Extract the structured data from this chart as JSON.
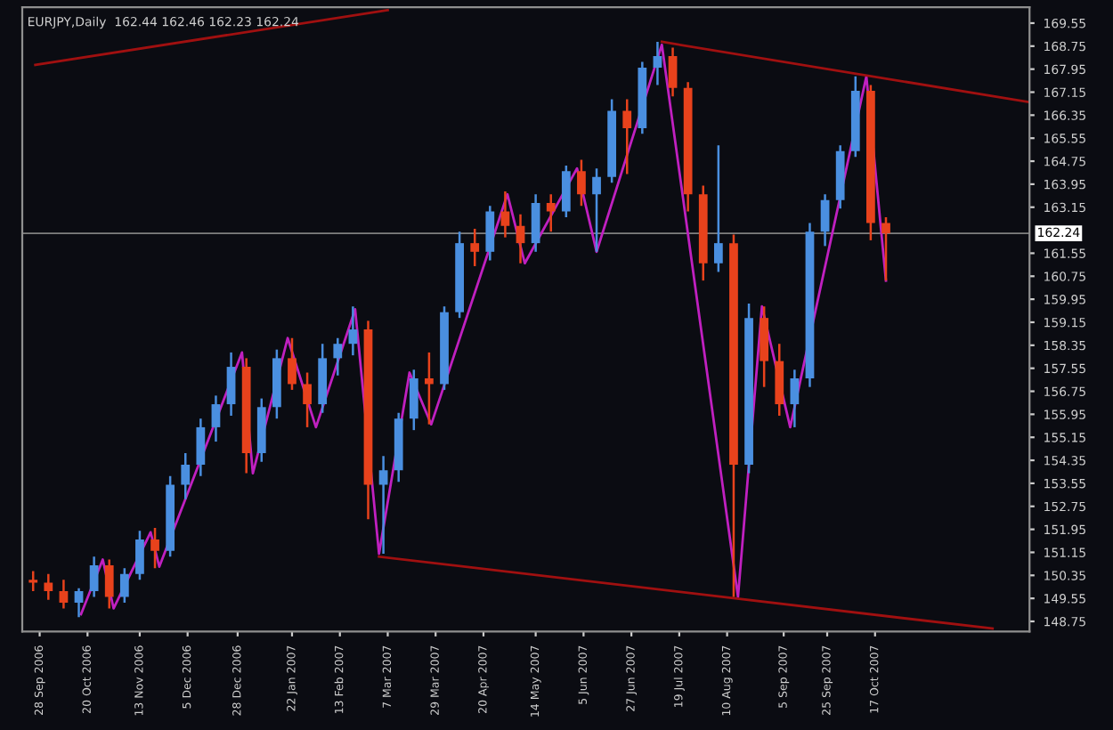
{
  "chart_data": {
    "type": "candlestick",
    "title": "EURJPY,Daily  162.44 162.46 162.23 162.24",
    "x": [
      "2006-09-25",
      "2006-10-02",
      "2006-10-09",
      "2006-10-16",
      "2006-10-23",
      "2006-10-30",
      "2006-11-06",
      "2006-11-13",
      "2006-11-20",
      "2006-11-27",
      "2006-12-04",
      "2006-12-11",
      "2006-12-18",
      "2006-12-25",
      "2007-01-01",
      "2007-01-08",
      "2007-01-15",
      "2007-01-22",
      "2007-01-29",
      "2007-02-05",
      "2007-02-12",
      "2007-02-19",
      "2007-02-26",
      "2007-03-05",
      "2007-03-12",
      "2007-03-19",
      "2007-03-26",
      "2007-04-02",
      "2007-04-09",
      "2007-04-16",
      "2007-04-23",
      "2007-04-30",
      "2007-05-07",
      "2007-05-14",
      "2007-05-21",
      "2007-05-28",
      "2007-06-04",
      "2007-06-11",
      "2007-06-18",
      "2007-06-25",
      "2007-07-02",
      "2007-07-09",
      "2007-07-16",
      "2007-07-23",
      "2007-07-30",
      "2007-08-06",
      "2007-08-13",
      "2007-08-20",
      "2007-08-27",
      "2007-09-03",
      "2007-09-10",
      "2007-09-17",
      "2007-09-24",
      "2007-10-01",
      "2007-10-08",
      "2007-10-15",
      "2007-10-22"
    ],
    "ohlc": [
      [
        150.2,
        150.5,
        149.8,
        150.1
      ],
      [
        150.1,
        150.4,
        149.5,
        149.8
      ],
      [
        149.8,
        150.2,
        149.2,
        149.4
      ],
      [
        149.4,
        149.9,
        148.9,
        149.8
      ],
      [
        149.8,
        151.0,
        149.6,
        150.7
      ],
      [
        150.7,
        150.9,
        149.2,
        149.6
      ],
      [
        149.6,
        150.6,
        149.4,
        150.4
      ],
      [
        150.4,
        151.9,
        150.2,
        151.6
      ],
      [
        151.6,
        152.0,
        150.6,
        151.2
      ],
      [
        151.2,
        153.8,
        151.0,
        153.5
      ],
      [
        153.5,
        154.6,
        153.0,
        154.2
      ],
      [
        154.2,
        155.8,
        153.8,
        155.5
      ],
      [
        155.5,
        156.6,
        155.0,
        156.3
      ],
      [
        156.3,
        158.1,
        155.9,
        157.6
      ],
      [
        157.6,
        157.9,
        153.9,
        154.6
      ],
      [
        154.6,
        156.5,
        154.3,
        156.2
      ],
      [
        156.2,
        158.2,
        155.8,
        157.9
      ],
      [
        157.9,
        158.6,
        156.8,
        157.0
      ],
      [
        157.0,
        157.4,
        155.5,
        156.3
      ],
      [
        156.3,
        158.4,
        156.0,
        157.9
      ],
      [
        157.9,
        158.6,
        157.3,
        158.4
      ],
      [
        158.4,
        159.7,
        158.0,
        158.9
      ],
      [
        158.9,
        159.2,
        152.3,
        153.5
      ],
      [
        153.5,
        154.5,
        151.1,
        154.0
      ],
      [
        154.0,
        156.0,
        153.6,
        155.8
      ],
      [
        155.8,
        157.5,
        155.4,
        157.2
      ],
      [
        157.2,
        158.1,
        155.6,
        157.0
      ],
      [
        157.0,
        159.7,
        156.8,
        159.5
      ],
      [
        159.5,
        162.3,
        159.3,
        161.9
      ],
      [
        161.9,
        162.4,
        161.1,
        161.6
      ],
      [
        161.6,
        163.2,
        161.3,
        163.0
      ],
      [
        163.0,
        163.7,
        162.1,
        162.5
      ],
      [
        162.5,
        162.9,
        161.2,
        161.9
      ],
      [
        161.9,
        163.6,
        161.6,
        163.3
      ],
      [
        163.3,
        163.6,
        162.3,
        163.0
      ],
      [
        163.0,
        164.6,
        162.8,
        164.4
      ],
      [
        164.4,
        164.8,
        163.2,
        163.6
      ],
      [
        163.6,
        164.5,
        161.6,
        164.2
      ],
      [
        164.2,
        166.9,
        164.0,
        166.5
      ],
      [
        166.5,
        166.9,
        164.3,
        165.9
      ],
      [
        165.9,
        168.2,
        165.7,
        168.0
      ],
      [
        168.0,
        168.9,
        167.4,
        168.4
      ],
      [
        168.4,
        168.7,
        167.0,
        167.3
      ],
      [
        167.3,
        167.5,
        163.0,
        163.6
      ],
      [
        163.6,
        163.9,
        160.6,
        161.2
      ],
      [
        161.2,
        165.3,
        160.9,
        161.9
      ],
      [
        161.9,
        162.2,
        149.6,
        154.2
      ],
      [
        154.2,
        159.8,
        153.9,
        159.3
      ],
      [
        159.3,
        159.7,
        156.9,
        157.8
      ],
      [
        157.8,
        158.4,
        155.9,
        156.3
      ],
      [
        156.3,
        157.5,
        155.5,
        157.2
      ],
      [
        157.2,
        162.6,
        156.9,
        162.3
      ],
      [
        162.3,
        163.6,
        161.8,
        163.4
      ],
      [
        163.4,
        165.3,
        163.1,
        165.1
      ],
      [
        165.1,
        167.7,
        164.9,
        167.2
      ],
      [
        167.2,
        167.4,
        162.0,
        162.6
      ],
      [
        162.6,
        162.8,
        160.6,
        162.24
      ]
    ],
    "series": [
      {
        "type": "line",
        "color": "#c020c0",
        "x": [
          "2006-10-17",
          "2006-10-27",
          "2006-11-01",
          "2006-11-18",
          "2006-11-22",
          "2006-12-30",
          "2007-01-04",
          "2007-01-20",
          "2007-02-02",
          "2007-02-20",
          "2007-03-03",
          "2007-03-17",
          "2007-03-27",
          "2007-05-01",
          "2007-05-09",
          "2007-06-02",
          "2007-06-11",
          "2007-07-11",
          "2007-08-15",
          "2007-08-26",
          "2007-09-08",
          "2007-10-13",
          "2007-10-22"
        ],
        "values": [
          149.0,
          150.9,
          149.2,
          151.85,
          150.65,
          158.1,
          153.9,
          158.6,
          155.5,
          159.6,
          151.1,
          157.4,
          155.6,
          163.6,
          161.2,
          164.5,
          161.6,
          168.8,
          149.6,
          159.7,
          155.5,
          167.7,
          160.6
        ]
      },
      {
        "type": "line",
        "color": "#a01010",
        "x": [
          "2006-09-26",
          "2007-03-07"
        ],
        "values": [
          168.1,
          170.0
        ]
      },
      {
        "type": "line",
        "color": "#a01010",
        "x": [
          "2007-07-11",
          "2007-12-27"
        ],
        "values": [
          168.9,
          166.8
        ]
      },
      {
        "type": "line",
        "color": "#a01010",
        "x": [
          "2007-03-03",
          "2007-12-10"
        ],
        "values": [
          151.0,
          148.5
        ]
      }
    ],
    "colors": [
      "#e8421c",
      "#e8421c",
      "#e8421c",
      "#4a8fe0",
      "#4a8fe0",
      "#e8421c",
      "#4a8fe0",
      "#4a8fe0",
      "#e8421c",
      "#4a8fe0",
      "#4a8fe0",
      "#4a8fe0",
      "#4a8fe0",
      "#4a8fe0",
      "#e8421c",
      "#4a8fe0",
      "#4a8fe0",
      "#e8421c",
      "#e8421c",
      "#4a8fe0",
      "#4a8fe0",
      "#4a8fe0",
      "#e8421c",
      "#4a8fe0",
      "#4a8fe0",
      "#4a8fe0",
      "#e8421c",
      "#4a8fe0",
      "#4a8fe0",
      "#e8421c",
      "#4a8fe0",
      "#e8421c",
      "#e8421c",
      "#4a8fe0",
      "#e8421c",
      "#4a8fe0",
      "#e8421c",
      "#4a8fe0",
      "#4a8fe0",
      "#e8421c",
      "#4a8fe0",
      "#4a8fe0",
      "#e8421c",
      "#e8421c",
      "#e8421c",
      "#4a8fe0",
      "#e8421c",
      "#4a8fe0",
      "#e8421c",
      "#e8421c",
      "#4a8fe0",
      "#4a8fe0",
      "#4a8fe0",
      "#4a8fe0",
      "#4a8fe0",
      "#e8421c",
      "#e8421c"
    ],
    "ylim": [
      148.4,
      170.1
    ],
    "yticks": [
      148.75,
      149.55,
      150.35,
      151.15,
      151.95,
      152.75,
      153.55,
      154.35,
      155.15,
      155.95,
      156.75,
      157.55,
      158.35,
      159.15,
      159.95,
      160.75,
      161.55,
      163.15,
      163.95,
      164.75,
      165.55,
      166.35,
      167.15,
      167.95,
      168.75,
      169.55
    ],
    "xlim": [
      "2006-09-20",
      "2007-12-27"
    ],
    "xticks": [
      {
        "value": "2006-09-28",
        "label": "28 Sep 2006"
      },
      {
        "value": "2006-10-20",
        "label": "20 Oct 2006"
      },
      {
        "value": "2006-11-13",
        "label": "13 Nov 2006"
      },
      {
        "value": "2006-12-05",
        "label": "5 Dec 2006"
      },
      {
        "value": "2006-12-28",
        "label": "28 Dec 2006"
      },
      {
        "value": "2007-01-22",
        "label": "22 Jan 2007"
      },
      {
        "value": "2007-02-13",
        "label": "13 Feb 2007"
      },
      {
        "value": "2007-03-07",
        "label": "7 Mar 2007"
      },
      {
        "value": "2007-03-29",
        "label": "29 Mar 2007"
      },
      {
        "value": "2007-04-20",
        "label": "20 Apr 2007"
      },
      {
        "value": "2007-05-14",
        "label": "14 May 2007"
      },
      {
        "value": "2007-06-05",
        "label": "5 Jun 2007"
      },
      {
        "value": "2007-06-27",
        "label": "27 Jun 2007"
      },
      {
        "value": "2007-07-19",
        "label": "19 Jul 2007"
      },
      {
        "value": "2007-08-10",
        "label": "10 Aug 2007"
      },
      {
        "value": "2007-09-05",
        "label": "5 Sep 2007"
      },
      {
        "value": "2007-09-25",
        "label": "25 Sep 2007"
      },
      {
        "value": "2007-10-17",
        "label": "17 Oct 2007"
      }
    ],
    "ref_lines": [
      {
        "axis": "y",
        "value": 162.24,
        "label": "162.24",
        "color": "#808080"
      }
    ],
    "grid": false,
    "legend": false
  }
}
